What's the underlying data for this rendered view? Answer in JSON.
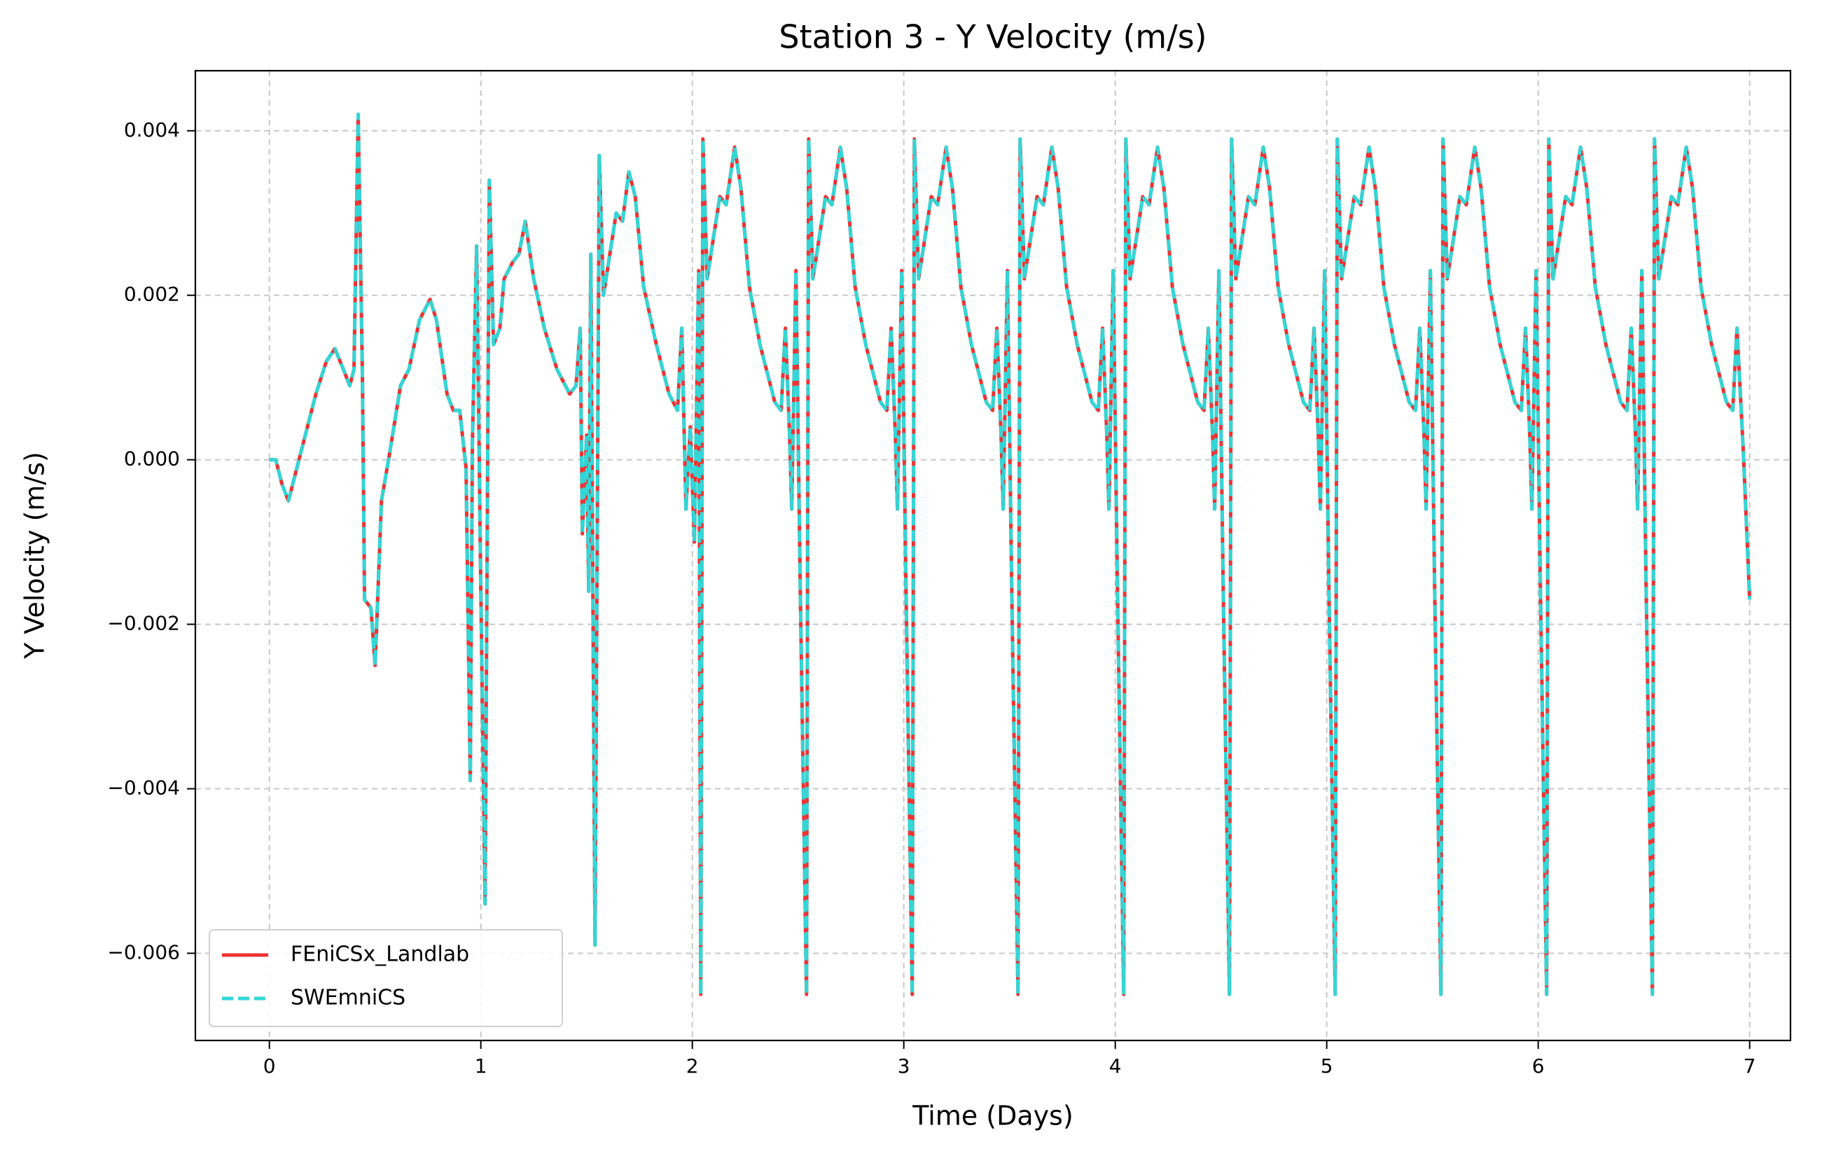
{
  "chart_data": {
    "type": "line",
    "title": "Station 3 - Y Velocity (m/s)",
    "x_label": "Time (Days)",
    "y_label": "Y Velocity (m/s)",
    "xlim": [
      -0.35,
      7.193
    ],
    "ylim": [
      -0.00706,
      0.00473
    ],
    "xticks": [
      0,
      1,
      2,
      3,
      4,
      5,
      6,
      7
    ],
    "yticks": [
      {
        "value": -0.006,
        "label": "−0.006"
      },
      {
        "value": -0.004,
        "label": "−0.004"
      },
      {
        "value": -0.002,
        "label": "−0.002"
      },
      {
        "value": 0,
        "label": "0.000"
      },
      {
        "value": 0.002,
        "label": "0.002"
      },
      {
        "value": 0.004,
        "label": "0.004"
      }
    ],
    "grid": true,
    "legend": "lower left",
    "x": [
      0,
      0.03,
      0.06,
      0.09,
      0.12,
      0.17,
      0.22,
      0.27,
      0.31,
      0.35,
      0.38,
      0.4,
      0.42,
      0.44,
      0.45,
      0.48,
      0.5,
      0.53,
      0.57,
      0.62,
      0.66,
      0.71,
      0.76,
      0.79,
      0.84,
      0.87,
      0.9,
      0.93,
      0.95,
      0.96,
      0.98,
      1.0,
      1.02,
      1.04,
      1.06,
      1.09,
      1.11,
      1.15,
      1.18,
      1.21,
      1.25,
      1.3,
      1.36,
      1.42,
      1.45,
      1.47,
      1.48,
      1.5,
      1.51,
      1.52,
      1.54,
      1.56,
      1.58,
      1.61,
      1.64,
      1.67,
      1.7,
      1.73,
      1.77,
      1.83,
      1.89,
      1.93,
      1.95,
      1.97,
      1.99,
      2.01,
      2.03,
      2.04,
      2.05,
      2.07,
      2.1,
      2.13,
      2.16,
      2.2,
      2.23,
      2.27,
      2.32,
      2.39,
      2.42,
      2.44,
      2.46,
      2.47,
      2.49,
      2.51,
      2.54,
      2.55,
      2.57,
      2.6,
      2.63,
      2.66,
      2.7,
      2.73,
      2.77,
      2.82,
      2.89,
      2.92,
      2.94,
      2.96,
      2.97,
      2.99,
      3.01,
      3.04,
      3.05,
      3.07,
      3.1,
      3.13,
      3.16,
      3.2,
      3.23,
      3.27,
      3.32,
      3.39,
      3.42,
      3.44,
      3.46,
      3.47,
      3.49,
      3.51,
      3.54,
      3.55,
      3.57,
      3.6,
      3.63,
      3.66,
      3.7,
      3.73,
      3.77,
      3.82,
      3.89,
      3.92,
      3.94,
      3.96,
      3.97,
      3.99,
      4.01,
      4.04,
      4.05,
      4.07,
      4.1,
      4.13,
      4.16,
      4.2,
      4.23,
      4.27,
      4.32,
      4.39,
      4.42,
      4.44,
      4.46,
      4.47,
      4.49,
      4.51,
      4.54,
      4.55,
      4.57,
      4.6,
      4.63,
      4.66,
      4.7,
      4.73,
      4.77,
      4.82,
      4.89,
      4.92,
      4.94,
      4.96,
      4.97,
      4.99,
      5.01,
      5.04,
      5.05,
      5.07,
      5.1,
      5.13,
      5.16,
      5.2,
      5.23,
      5.27,
      5.32,
      5.39,
      5.42,
      5.44,
      5.46,
      5.47,
      5.49,
      5.51,
      5.54,
      5.55,
      5.57,
      5.6,
      5.63,
      5.66,
      5.7,
      5.73,
      5.77,
      5.82,
      5.89,
      5.92,
      5.94,
      5.96,
      5.97,
      5.99,
      6.01,
      6.04,
      6.05,
      6.07,
      6.1,
      6.13,
      6.16,
      6.2,
      6.23,
      6.27,
      6.32,
      6.39,
      6.42,
      6.44,
      6.46,
      6.47,
      6.49,
      6.51,
      6.54,
      6.55,
      6.57,
      6.6,
      6.63,
      6.66,
      6.7,
      6.73,
      6.77,
      6.82,
      6.89,
      6.92,
      6.94,
      6.97,
      7.0
    ],
    "series": [
      {
        "name": "FEniCSx_Landlab",
        "color": "#ee3333",
        "values": [
          0,
          0,
          -0.0003,
          -0.0005,
          -0.0002,
          0.0003,
          0.0008,
          0.0012,
          0.00135,
          0.0011,
          0.0009,
          0.0011,
          0.0042,
          0.001,
          -0.0017,
          -0.0018,
          -0.0025,
          -0.0005,
          0.0001,
          0.0009,
          0.0011,
          0.0017,
          0.00195,
          0.0017,
          0.0008,
          0.0006,
          0.0006,
          -0.0001,
          -0.0039,
          0.0002,
          0.0026,
          -0.0016,
          -0.0054,
          0.0034,
          0.0014,
          0.0016,
          0.0022,
          0.0024,
          0.0025,
          0.0029,
          0.0022,
          0.0016,
          0.0011,
          0.0008,
          0.0009,
          0.0016,
          -0.0009,
          0.0003,
          -0.0016,
          0.0025,
          -0.0059,
          0.0037,
          0.002,
          0.0025,
          0.003,
          0.0029,
          0.0035,
          0.0032,
          0.0021,
          0.0014,
          0.0008,
          0.0006,
          0.0016,
          -0.0006,
          0.0004,
          -0.001,
          0.0023,
          -0.0065,
          0.0039,
          0.0022,
          0.0027,
          0.0032,
          0.0031,
          0.0038,
          0.0033,
          0.0021,
          0.0014,
          0.0007,
          0.0006,
          0.0016,
          0.0003,
          -0.0006,
          0.0023,
          -0.0015,
          -0.0065,
          0.0039,
          0.0022,
          0.0027,
          0.0032,
          0.0031,
          0.0038,
          0.0033,
          0.0021,
          0.0014,
          0.0007,
          0.0006,
          0.0016,
          0.0003,
          -0.0006,
          0.0023,
          -0.0015,
          -0.0065,
          0.0039,
          0.0022,
          0.0027,
          0.0032,
          0.0031,
          0.0038,
          0.0033,
          0.0021,
          0.0014,
          0.0007,
          0.0006,
          0.0016,
          0.0003,
          -0.0006,
          0.0023,
          -0.0015,
          -0.0065,
          0.0039,
          0.0022,
          0.0027,
          0.0032,
          0.0031,
          0.0038,
          0.0033,
          0.0021,
          0.0014,
          0.0007,
          0.0006,
          0.0016,
          0.0003,
          -0.0006,
          0.0023,
          -0.0015,
          -0.0065,
          0.0039,
          0.0022,
          0.0027,
          0.0032,
          0.0031,
          0.0038,
          0.0033,
          0.0021,
          0.0014,
          0.0007,
          0.0006,
          0.0016,
          0.0003,
          -0.0006,
          0.0023,
          -0.0015,
          -0.0065,
          0.0039,
          0.0022,
          0.0027,
          0.0032,
          0.0031,
          0.0038,
          0.0033,
          0.0021,
          0.0014,
          0.0007,
          0.0006,
          0.0016,
          0.0003,
          -0.0006,
          0.0023,
          -0.0015,
          -0.0065,
          0.0039,
          0.0022,
          0.0027,
          0.0032,
          0.0031,
          0.0038,
          0.0033,
          0.0021,
          0.0014,
          0.0007,
          0.0006,
          0.0016,
          0.0003,
          -0.0006,
          0.0023,
          -0.0015,
          -0.0065,
          0.0039,
          0.0022,
          0.0027,
          0.0032,
          0.0031,
          0.0038,
          0.0033,
          0.0021,
          0.0014,
          0.0007,
          0.0006,
          0.0016,
          0.0003,
          -0.0006,
          0.0023,
          -0.0015,
          -0.0065,
          0.0039,
          0.0022,
          0.0027,
          0.0032,
          0.0031,
          0.0038,
          0.0033,
          0.0021,
          0.0014,
          0.0007,
          0.0006,
          0.0016,
          0.0003,
          -0.0006,
          0.0023,
          -0.0015,
          -0.0065,
          0.0039,
          0.0022,
          0.0027,
          0.0032,
          0.0031,
          0.0038,
          0.0033,
          0.0021,
          0.0014,
          0.0007,
          0.0006,
          0.0016,
          0.0001,
          -0.0017
        ]
      },
      {
        "name": "SWEmniCS",
        "color": "#33d6d6",
        "dashed": true,
        "values": [
          0,
          0,
          -0.0003,
          -0.0005,
          -0.0002,
          0.0003,
          0.0008,
          0.0012,
          0.00135,
          0.0011,
          0.0009,
          0.0011,
          0.0042,
          0.001,
          -0.0017,
          -0.0018,
          -0.0025,
          -0.0005,
          0.0001,
          0.0009,
          0.0011,
          0.0017,
          0.00195,
          0.0017,
          0.0008,
          0.0006,
          0.0006,
          -0.0001,
          -0.0039,
          0.0002,
          0.0026,
          -0.0016,
          -0.0054,
          0.0034,
          0.0014,
          0.0016,
          0.0022,
          0.0024,
          0.0025,
          0.0029,
          0.0022,
          0.0016,
          0.0011,
          0.0008,
          0.0009,
          0.0016,
          -0.0009,
          0.0003,
          -0.0016,
          0.0025,
          -0.0059,
          0.0037,
          0.002,
          0.0025,
          0.003,
          0.0029,
          0.0035,
          0.0032,
          0.0021,
          0.0014,
          0.0008,
          0.0006,
          0.0016,
          -0.0006,
          0.0004,
          -0.001,
          0.0023,
          -0.0065,
          0.0039,
          0.0022,
          0.0027,
          0.0032,
          0.0031,
          0.0038,
          0.0033,
          0.0021,
          0.0014,
          0.0007,
          0.0006,
          0.0016,
          0.0003,
          -0.0006,
          0.0023,
          -0.0015,
          -0.0065,
          0.0039,
          0.0022,
          0.0027,
          0.0032,
          0.0031,
          0.0038,
          0.0033,
          0.0021,
          0.0014,
          0.0007,
          0.0006,
          0.0016,
          0.0003,
          -0.0006,
          0.0023,
          -0.0015,
          -0.0065,
          0.0039,
          0.0022,
          0.0027,
          0.0032,
          0.0031,
          0.0038,
          0.0033,
          0.0021,
          0.0014,
          0.0007,
          0.0006,
          0.0016,
          0.0003,
          -0.0006,
          0.0023,
          -0.0015,
          -0.0065,
          0.0039,
          0.0022,
          0.0027,
          0.0032,
          0.0031,
          0.0038,
          0.0033,
          0.0021,
          0.0014,
          0.0007,
          0.0006,
          0.0016,
          0.0003,
          -0.0006,
          0.0023,
          -0.0015,
          -0.0065,
          0.0039,
          0.0022,
          0.0027,
          0.0032,
          0.0031,
          0.0038,
          0.0033,
          0.0021,
          0.0014,
          0.0007,
          0.0006,
          0.0016,
          0.0003,
          -0.0006,
          0.0023,
          -0.0015,
          -0.0065,
          0.0039,
          0.0022,
          0.0027,
          0.0032,
          0.0031,
          0.0038,
          0.0033,
          0.0021,
          0.0014,
          0.0007,
          0.0006,
          0.0016,
          0.0003,
          -0.0006,
          0.0023,
          -0.0015,
          -0.0065,
          0.0039,
          0.0022,
          0.0027,
          0.0032,
          0.0031,
          0.0038,
          0.0033,
          0.0021,
          0.0014,
          0.0007,
          0.0006,
          0.0016,
          0.0003,
          -0.0006,
          0.0023,
          -0.0015,
          -0.0065,
          0.0039,
          0.0022,
          0.0027,
          0.0032,
          0.0031,
          0.0038,
          0.0033,
          0.0021,
          0.0014,
          0.0007,
          0.0006,
          0.0016,
          0.0003,
          -0.0006,
          0.0023,
          -0.0015,
          -0.0065,
          0.0039,
          0.0022,
          0.0027,
          0.0032,
          0.0031,
          0.0038,
          0.0033,
          0.0021,
          0.0014,
          0.0007,
          0.0006,
          0.0016,
          0.0003,
          -0.0006,
          0.0023,
          -0.0015,
          -0.0065,
          0.0039,
          0.0022,
          0.0027,
          0.0032,
          0.0031,
          0.0038,
          0.0033,
          0.0021,
          0.0014,
          0.0007,
          0.0006,
          0.0016,
          0.0001,
          -0.0017
        ]
      }
    ]
  }
}
